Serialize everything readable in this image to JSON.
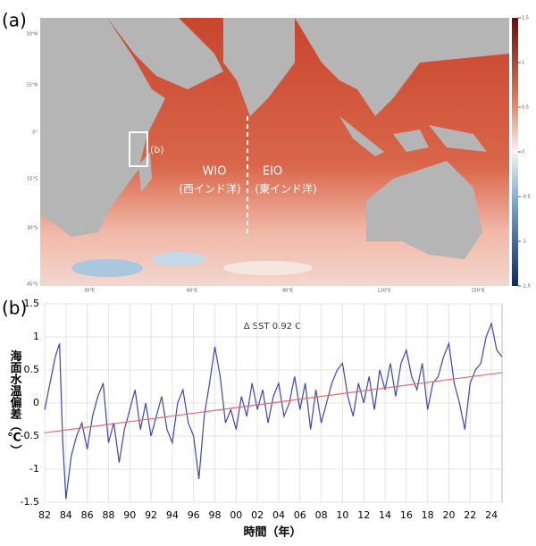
{
  "map": {
    "panel_label": "(a)",
    "box_label": "(b)",
    "regions": [
      {
        "name": "WIO",
        "sub": "(西インド洋)"
      },
      {
        "name": "EIO",
        "sub": "(東インド洋)"
      }
    ],
    "lat_labels": [
      "30°N",
      "15°N",
      "0°",
      "15°S",
      "30°S",
      "45°S"
    ],
    "lon_labels": [
      "30°E",
      "60°E",
      "90°E",
      "120°E",
      "150°E"
    ],
    "colorbar": {
      "lim": [
        -1.5,
        1.5
      ],
      "ticks": [
        1.5,
        1,
        0.5,
        0,
        -0.5,
        -1,
        -1.5
      ]
    }
  },
  "chart_data": {
    "type": "line",
    "panel_label": "(b)",
    "annotation": "Δ SST 0.92 C",
    "ylabel": "海面水温偏差（℃）",
    "xlabel": "時間（年）",
    "xlim": [
      1982,
      2025
    ],
    "ylim": [
      -1.5,
      1.5
    ],
    "xticks": [
      {
        "value": 1982,
        "label": "82"
      },
      {
        "value": 1984,
        "label": "84"
      },
      {
        "value": 1986,
        "label": "86"
      },
      {
        "value": 1988,
        "label": "88"
      },
      {
        "value": 1990,
        "label": "90"
      },
      {
        "value": 1992,
        "label": "92"
      },
      {
        "value": 1994,
        "label": "94"
      },
      {
        "value": 1996,
        "label": "96"
      },
      {
        "value": 1998,
        "label": "98"
      },
      {
        "value": 2000,
        "label": "00"
      },
      {
        "value": 2002,
        "label": "02"
      },
      {
        "value": 2004,
        "label": "04"
      },
      {
        "value": 2006,
        "label": "06"
      },
      {
        "value": 2008,
        "label": "08"
      },
      {
        "value": 2010,
        "label": "10"
      },
      {
        "value": 2012,
        "label": "12"
      },
      {
        "value": 2014,
        "label": "14"
      },
      {
        "value": 2016,
        "label": "16"
      },
      {
        "value": 2018,
        "label": "18"
      },
      {
        "value": 2020,
        "label": "20"
      },
      {
        "value": 2022,
        "label": "22"
      },
      {
        "value": 2024,
        "label": "24"
      }
    ],
    "yticks": [
      -1.5,
      -1,
      -0.5,
      0,
      0.5,
      1,
      1.5
    ],
    "grid": true,
    "series": [
      {
        "color": "#3d47a8",
        "x": [
          1982,
          1982.5,
          1983,
          1983.4,
          1983.7,
          1984,
          1984.5,
          1985,
          1985.5,
          1986,
          1986.5,
          1987,
          1987.5,
          1988,
          1988.5,
          1989,
          1989.5,
          1990,
          1990.5,
          1991,
          1991.5,
          1992,
          1992.5,
          1993,
          1993.5,
          1994,
          1994.5,
          1995,
          1995.5,
          1996,
          1996.5,
          1997,
          1997.5,
          1998,
          1998.5,
          1999,
          1999.5,
          2000,
          2000.5,
          2001,
          2001.5,
          2002,
          2002.5,
          2003,
          2003.5,
          2004,
          2004.5,
          2005,
          2005.5,
          2006,
          2006.5,
          2007,
          2007.5,
          2008,
          2008.5,
          2009,
          2009.5,
          2010,
          2010.5,
          2011,
          2011.5,
          2012,
          2012.5,
          2013,
          2013.5,
          2014,
          2014.5,
          2015,
          2015.5,
          2016,
          2016.5,
          2017,
          2017.5,
          2018,
          2018.5,
          2019,
          2019.5,
          2020,
          2020.5,
          2021,
          2021.5,
          2022,
          2022.5,
          2023,
          2023.5,
          2024,
          2024.5,
          2025
        ],
        "values": [
          -0.1,
          0.3,
          0.7,
          0.9,
          -0.6,
          -1.45,
          -0.8,
          -0.5,
          -0.3,
          -0.7,
          -0.2,
          0.1,
          0.3,
          -0.6,
          -0.3,
          -0.9,
          -0.4,
          -0.1,
          0.2,
          -0.4,
          0.0,
          -0.5,
          -0.2,
          0.1,
          -0.4,
          -0.6,
          0.0,
          0.2,
          -0.3,
          -0.5,
          -1.15,
          -0.2,
          0.3,
          0.85,
          0.4,
          -0.3,
          -0.1,
          -0.4,
          0.1,
          -0.2,
          0.3,
          -0.1,
          0.2,
          -0.3,
          0.1,
          0.3,
          -0.2,
          0.0,
          0.4,
          -0.1,
          0.3,
          -0.4,
          0.2,
          -0.3,
          0.0,
          0.3,
          0.5,
          0.6,
          0.1,
          -0.2,
          0.3,
          0.0,
          0.4,
          -0.1,
          0.5,
          0.2,
          0.6,
          0.1,
          0.6,
          0.8,
          0.4,
          0.2,
          0.6,
          -0.1,
          0.3,
          0.4,
          0.7,
          0.9,
          0.3,
          0.0,
          -0.4,
          0.3,
          0.5,
          0.6,
          1.0,
          1.2,
          0.8,
          0.7
        ]
      },
      {
        "color": "#e36a6a",
        "x": [
          1982,
          2025
        ],
        "values": [
          -0.45,
          0.46
        ]
      }
    ]
  }
}
